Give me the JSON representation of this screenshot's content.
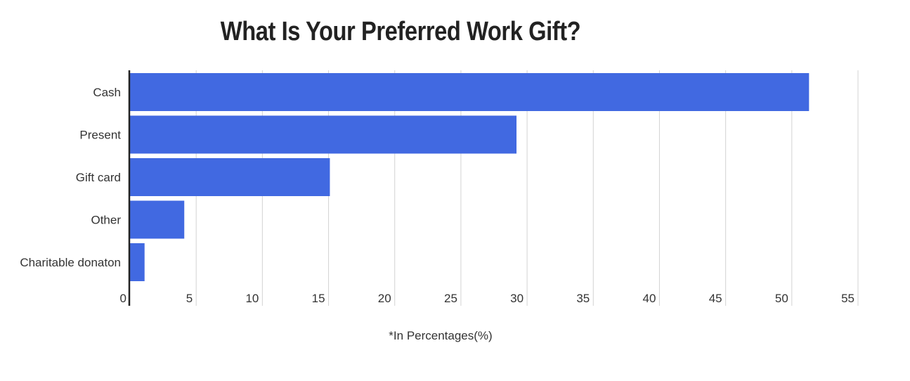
{
  "chart_data": {
    "type": "bar",
    "orientation": "horizontal",
    "title": "What Is Your Preferred Work Gift?",
    "xlabel": "*In Percentages(%)",
    "ylabel": "",
    "categories": [
      "Cash",
      "Present",
      "Gift card",
      "Other",
      "Charitable donaton"
    ],
    "values": [
      51.3,
      29.2,
      15.1,
      4.1,
      1.1
    ],
    "xlim": [
      0,
      55
    ],
    "xticks": [
      0,
      5,
      10,
      15,
      20,
      25,
      30,
      35,
      40,
      45,
      50,
      55
    ],
    "grid": true,
    "legend": "none",
    "bar_color": "#4169e1",
    "grid_color": "#d3d3d3",
    "axis_color": "#222222"
  }
}
